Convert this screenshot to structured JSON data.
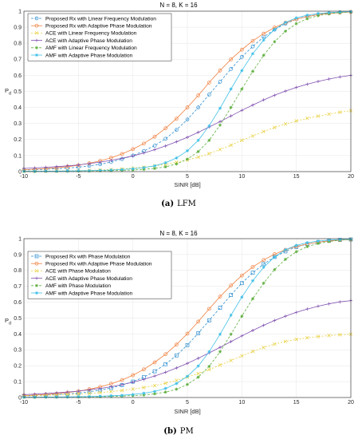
{
  "colors": {
    "proposed": "#2f8fd0",
    "proposed_apm": "#f08040",
    "ace": "#e8d040",
    "ace_apm": "#8050b0",
    "amf": "#60b040",
    "amf_apm": "#40c0e8"
  },
  "chart_data": [
    {
      "type": "line",
      "title": "N = 8, K = 16",
      "caption_label": "(a)",
      "caption_text": "LFM",
      "xlabel": "SINR [dB]",
      "ylabel": "P",
      "ylabel_sub": "d",
      "xlim": [
        -10,
        20
      ],
      "ylim": [
        0,
        1
      ],
      "xticks": [
        "-10",
        "-5",
        "0",
        "5",
        "10",
        "15",
        "20"
      ],
      "yticks": [
        "0",
        "0.1",
        "0.2",
        "0.3",
        "0.4",
        "0.5",
        "0.6",
        "0.7",
        "0.8",
        "0.9",
        "1"
      ],
      "grid": true,
      "legend_position": "top-left",
      "x": [
        -10,
        -9,
        -8,
        -7,
        -6,
        -5,
        -4,
        -3,
        -2,
        -1,
        0,
        1,
        2,
        3,
        4,
        5,
        6,
        7,
        8,
        9,
        10,
        11,
        12,
        13,
        14,
        15,
        16,
        17,
        18,
        19,
        20
      ],
      "series": [
        {
          "name": "Proposed Rx with Linear Frequency Modulation",
          "color": "#2f8fd0",
          "dash": "3,2",
          "marker": "circle",
          "values": [
            0.01,
            0.012,
            0.015,
            0.018,
            0.022,
            0.028,
            0.036,
            0.046,
            0.06,
            0.078,
            0.1,
            0.128,
            0.162,
            0.205,
            0.26,
            0.325,
            0.4,
            0.48,
            0.56,
            0.64,
            0.715,
            0.78,
            0.84,
            0.885,
            0.922,
            0.95,
            0.968,
            0.98,
            0.988,
            0.993,
            0.996
          ]
        },
        {
          "name": "Proposed Rx with Adaptive Phase Modulation",
          "color": "#f08040",
          "dash": "",
          "marker": "circle",
          "values": [
            0.012,
            0.015,
            0.019,
            0.024,
            0.031,
            0.04,
            0.052,
            0.067,
            0.086,
            0.11,
            0.14,
            0.175,
            0.218,
            0.27,
            0.33,
            0.4,
            0.475,
            0.555,
            0.63,
            0.7,
            0.76,
            0.815,
            0.86,
            0.898,
            0.928,
            0.95,
            0.966,
            0.978,
            0.986,
            0.991,
            0.995
          ]
        },
        {
          "name": "ACE with Linear Frequency Modulation",
          "color": "#e8d040",
          "dash": "2,2",
          "marker": "x",
          "values": [
            0.002,
            0.003,
            0.003,
            0.004,
            0.005,
            0.006,
            0.008,
            0.01,
            0.013,
            0.017,
            0.022,
            0.028,
            0.036,
            0.046,
            0.058,
            0.072,
            0.09,
            0.112,
            0.138,
            0.165,
            0.195,
            0.222,
            0.25,
            0.275,
            0.297,
            0.316,
            0.332,
            0.346,
            0.358,
            0.37,
            0.38
          ]
        },
        {
          "name": "ACE with Adaptive Phase Modulation",
          "color": "#8050b0",
          "dash": "",
          "marker": "plus",
          "values": [
            0.02,
            0.023,
            0.027,
            0.031,
            0.036,
            0.042,
            0.05,
            0.059,
            0.07,
            0.083,
            0.098,
            0.116,
            0.137,
            0.16,
            0.186,
            0.214,
            0.245,
            0.278,
            0.312,
            0.347,
            0.382,
            0.415,
            0.447,
            0.476,
            0.502,
            0.525,
            0.545,
            0.562,
            0.577,
            0.59,
            0.6
          ]
        },
        {
          "name": "AMF with Linear Frequency Modulation",
          "color": "#60b040",
          "dash": "3,2",
          "marker": "asterisk",
          "values": [
            0.001,
            0.001,
            0.002,
            0.002,
            0.003,
            0.003,
            0.004,
            0.005,
            0.006,
            0.008,
            0.01,
            0.014,
            0.02,
            0.03,
            0.048,
            0.078,
            0.125,
            0.195,
            0.29,
            0.4,
            0.515,
            0.625,
            0.725,
            0.81,
            0.875,
            0.922,
            0.953,
            0.972,
            0.984,
            0.991,
            0.995
          ]
        },
        {
          "name": "AMF with Adaptive Phase Modulation",
          "color": "#40c0e8",
          "dash": "",
          "marker": "star",
          "values": [
            0.002,
            0.002,
            0.003,
            0.003,
            0.004,
            0.005,
            0.006,
            0.008,
            0.01,
            0.013,
            0.018,
            0.025,
            0.036,
            0.055,
            0.085,
            0.13,
            0.195,
            0.285,
            0.395,
            0.515,
            0.63,
            0.735,
            0.82,
            0.885,
            0.93,
            0.958,
            0.975,
            0.985,
            0.991,
            0.995,
            0.997
          ]
        }
      ]
    },
    {
      "type": "line",
      "title": "N = 8, K = 16",
      "caption_label": "(b)",
      "caption_text": "PM",
      "xlabel": "SINR [dB]",
      "ylabel": "P",
      "ylabel_sub": "d",
      "xlim": [
        -10,
        20
      ],
      "ylim": [
        0,
        1
      ],
      "xticks": [
        "-10",
        "-5",
        "0",
        "5",
        "10",
        "15",
        "20"
      ],
      "yticks": [
        "0",
        "0.1",
        "0.2",
        "0.3",
        "0.4",
        "0.5",
        "0.6",
        "0.7",
        "0.8",
        "0.9",
        "1"
      ],
      "grid": true,
      "legend_position": "top-left",
      "x": [
        -10,
        -9,
        -8,
        -7,
        -6,
        -5,
        -4,
        -3,
        -2,
        -1,
        0,
        1,
        2,
        3,
        4,
        5,
        6,
        7,
        8,
        9,
        10,
        11,
        12,
        13,
        14,
        15,
        16,
        17,
        18,
        19,
        20
      ],
      "series": [
        {
          "name": "Proposed Rx with Phase Modulation",
          "color": "#2f8fd0",
          "dash": "3,2",
          "marker": "square",
          "values": [
            0.01,
            0.012,
            0.015,
            0.018,
            0.022,
            0.028,
            0.036,
            0.046,
            0.06,
            0.078,
            0.1,
            0.128,
            0.165,
            0.21,
            0.265,
            0.33,
            0.405,
            0.485,
            0.565,
            0.645,
            0.72,
            0.785,
            0.84,
            0.885,
            0.92,
            0.948,
            0.966,
            0.978,
            0.987,
            0.992,
            0.995
          ]
        },
        {
          "name": "Proposed Rx with Adaptive Phase Modulation",
          "color": "#f08040",
          "dash": "",
          "marker": "circle",
          "values": [
            0.012,
            0.015,
            0.019,
            0.024,
            0.031,
            0.04,
            0.052,
            0.067,
            0.086,
            0.11,
            0.14,
            0.177,
            0.221,
            0.273,
            0.333,
            0.402,
            0.478,
            0.558,
            0.635,
            0.705,
            0.768,
            0.822,
            0.866,
            0.902,
            0.93,
            0.951,
            0.967,
            0.978,
            0.986,
            0.991,
            0.995
          ]
        },
        {
          "name": "ACE with Phase Modulation",
          "color": "#e8d040",
          "dash": "2,2",
          "marker": "x",
          "values": [
            0.01,
            0.012,
            0.014,
            0.016,
            0.019,
            0.022,
            0.026,
            0.031,
            0.037,
            0.044,
            0.053,
            0.063,
            0.075,
            0.09,
            0.108,
            0.128,
            0.151,
            0.176,
            0.204,
            0.233,
            0.262,
            0.29,
            0.315,
            0.336,
            0.353,
            0.366,
            0.376,
            0.384,
            0.39,
            0.395,
            0.398
          ]
        },
        {
          "name": "ACE with Adaptive Phase Modulation",
          "color": "#8050b0",
          "dash": "",
          "marker": "plus",
          "values": [
            0.018,
            0.021,
            0.025,
            0.029,
            0.034,
            0.04,
            0.048,
            0.057,
            0.068,
            0.081,
            0.096,
            0.114,
            0.135,
            0.159,
            0.186,
            0.215,
            0.247,
            0.281,
            0.316,
            0.352,
            0.388,
            0.422,
            0.455,
            0.485,
            0.512,
            0.536,
            0.557,
            0.575,
            0.59,
            0.602,
            0.61
          ]
        },
        {
          "name": "AMF with Phase Modulation",
          "color": "#60b040",
          "dash": "3,2",
          "marker": "asterisk",
          "values": [
            0.001,
            0.001,
            0.002,
            0.002,
            0.003,
            0.003,
            0.004,
            0.005,
            0.007,
            0.009,
            0.012,
            0.016,
            0.023,
            0.034,
            0.052,
            0.082,
            0.128,
            0.196,
            0.288,
            0.398,
            0.512,
            0.622,
            0.72,
            0.805,
            0.87,
            0.918,
            0.95,
            0.97,
            0.982,
            0.99,
            0.995
          ]
        },
        {
          "name": "AMF with Adaptive Phase Modulation",
          "color": "#40c0e8",
          "dash": "",
          "marker": "star",
          "values": [
            0.002,
            0.002,
            0.003,
            0.003,
            0.004,
            0.005,
            0.006,
            0.008,
            0.011,
            0.014,
            0.019,
            0.027,
            0.038,
            0.057,
            0.088,
            0.133,
            0.198,
            0.288,
            0.398,
            0.518,
            0.632,
            0.735,
            0.82,
            0.885,
            0.93,
            0.958,
            0.975,
            0.985,
            0.991,
            0.995,
            0.997
          ]
        }
      ]
    }
  ]
}
